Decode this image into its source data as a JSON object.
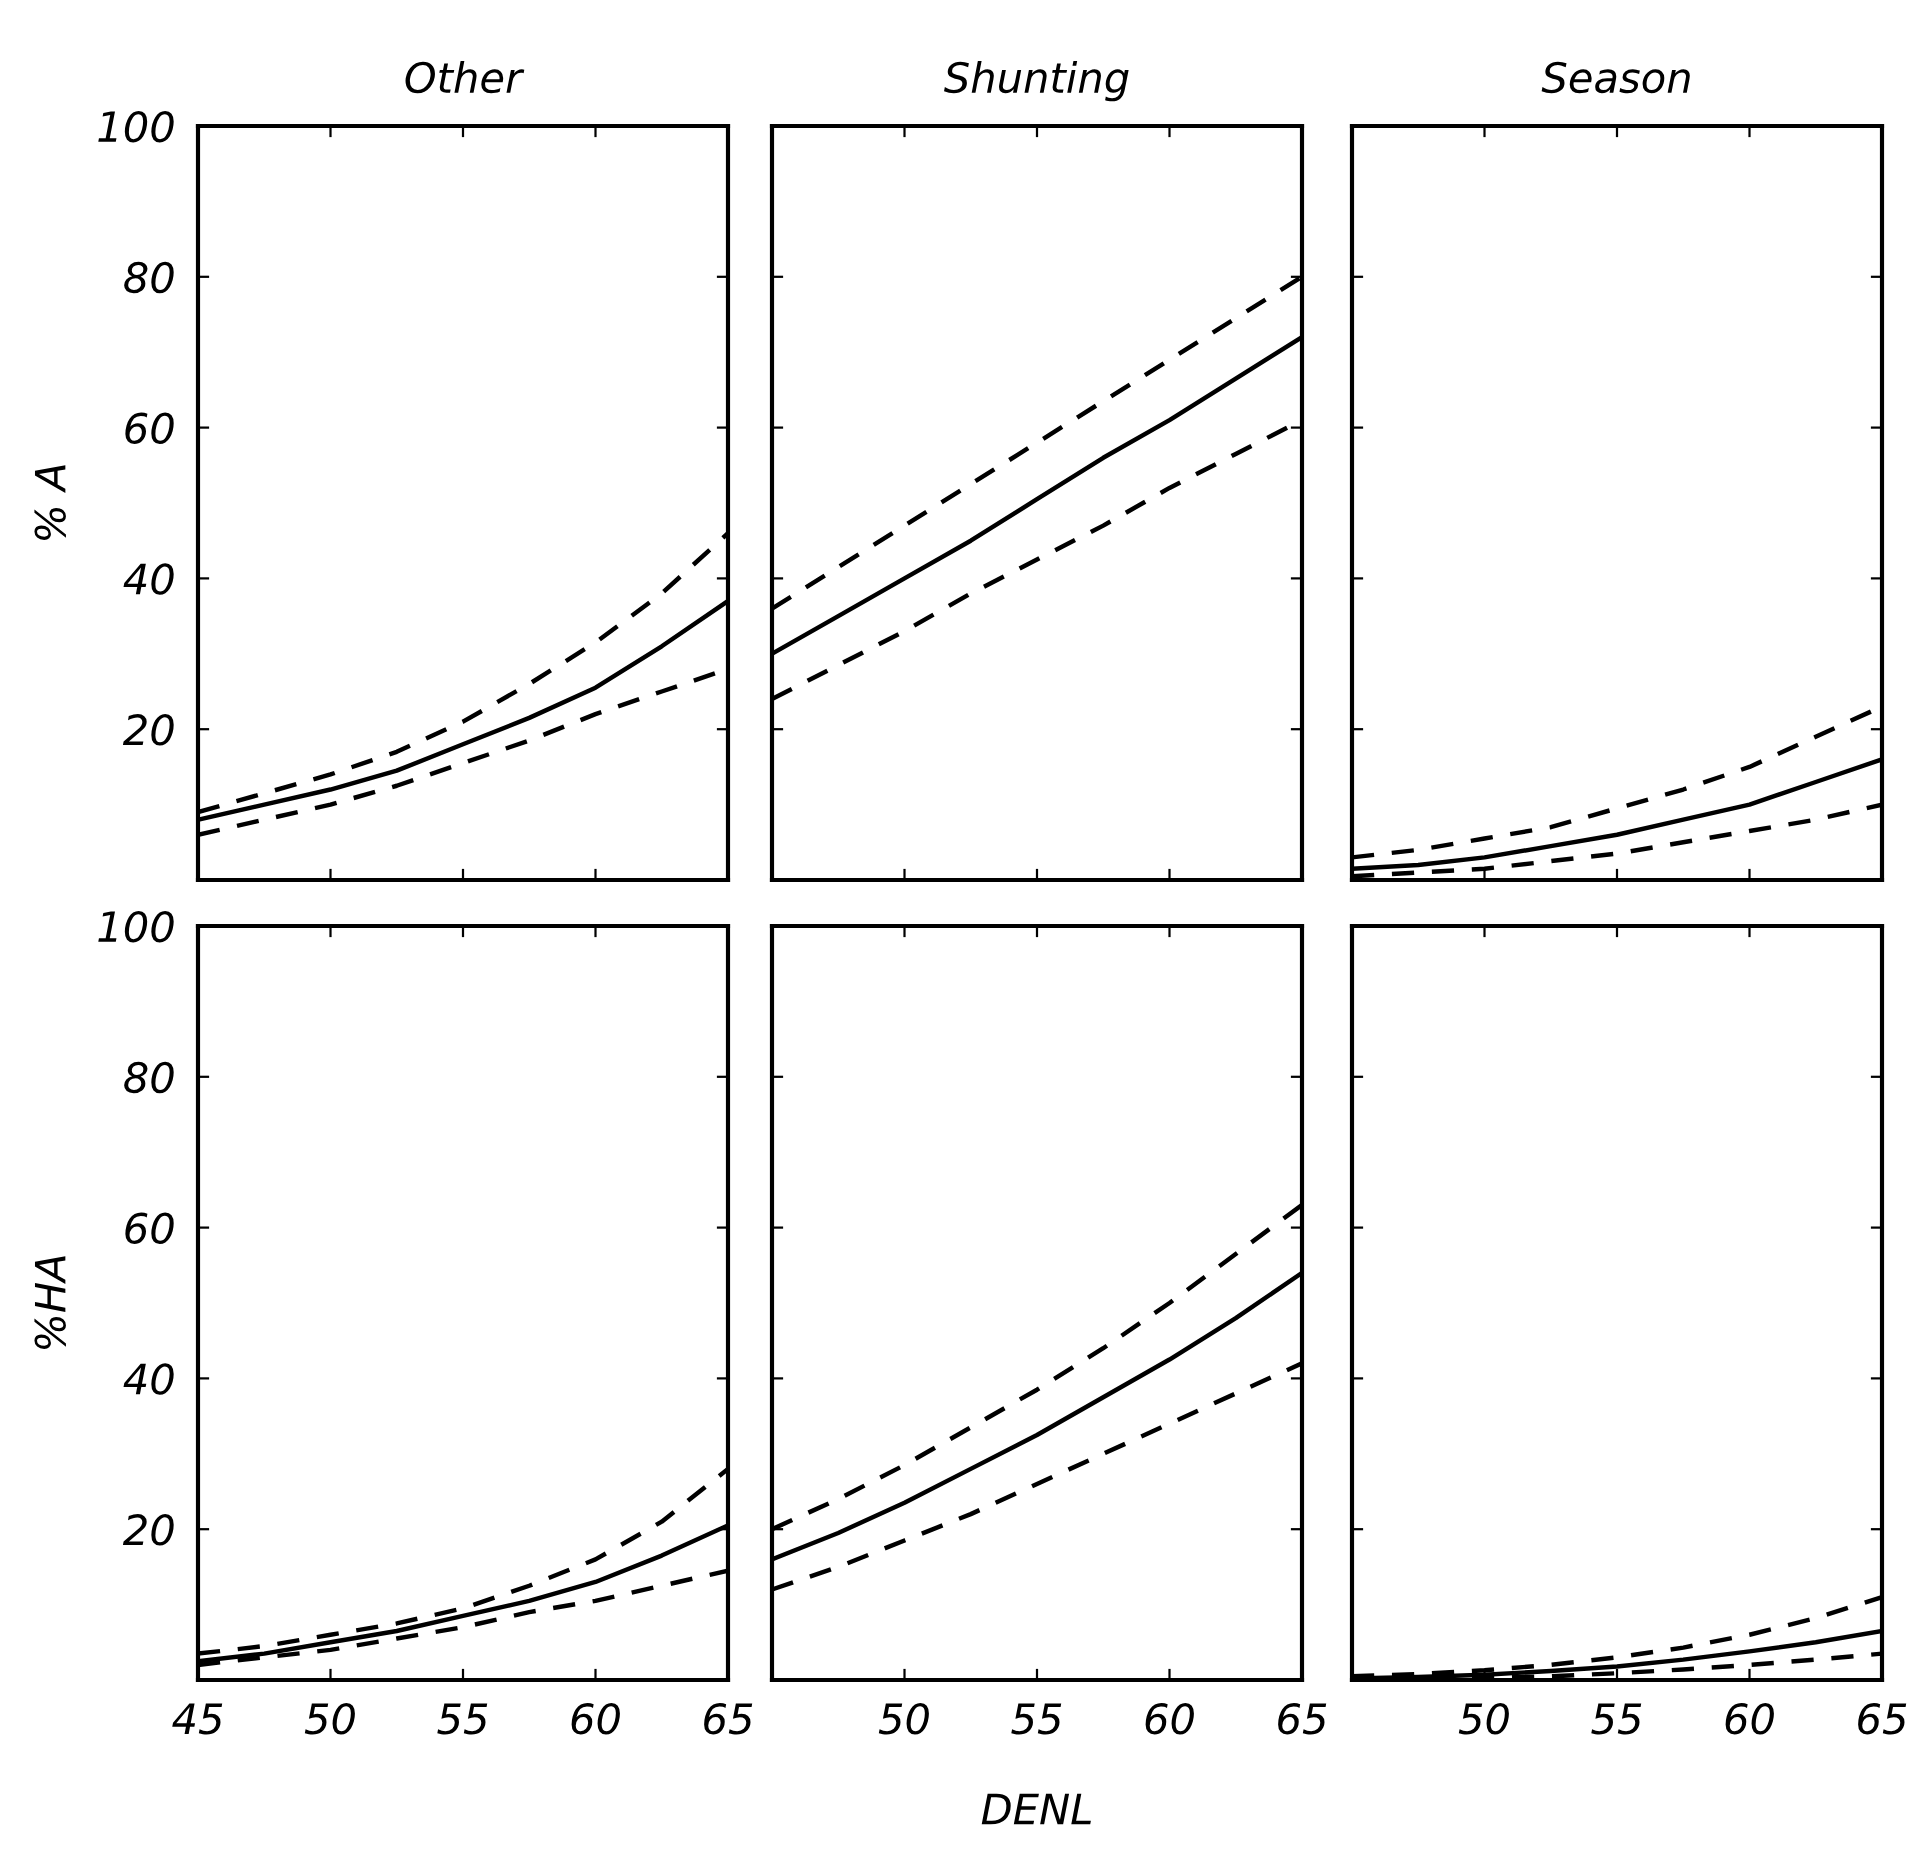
{
  "chart_data": [
    {
      "type": "line",
      "title": "Other",
      "ylabel": "% A",
      "x": [
        45,
        47.5,
        50,
        52.5,
        55,
        57.5,
        60,
        62.5,
        65
      ],
      "xlim": [
        45,
        65
      ],
      "xticks": [
        45,
        50,
        55,
        60,
        65
      ],
      "ylim": [
        0,
        100
      ],
      "yticks": [
        20,
        40,
        60,
        80,
        100
      ],
      "tick_labels": "y",
      "grid": false,
      "series": [
        {
          "color": "#000000",
          "line_style": "solid",
          "values": [
            8,
            10,
            12,
            14.5,
            18,
            21.5,
            25.5,
            31,
            37
          ]
        },
        {
          "color": "#000000",
          "line_style": "dashed",
          "values": [
            9,
            11.5,
            14,
            17,
            21,
            26,
            31.5,
            38,
            46
          ]
        },
        {
          "color": "#000000",
          "line_style": "dashed",
          "values": [
            6,
            8,
            10,
            12.5,
            15.5,
            18.5,
            22,
            25,
            28
          ]
        }
      ]
    },
    {
      "type": "line",
      "title": "Shunting",
      "x": [
        45,
        47.5,
        50,
        52.5,
        55,
        57.5,
        60,
        62.5,
        65
      ],
      "xlim": [
        45,
        65
      ],
      "xticks": [
        45,
        50,
        55,
        60,
        65
      ],
      "ylim": [
        0,
        100
      ],
      "yticks": [
        20,
        40,
        60,
        80,
        100
      ],
      "tick_labels": false,
      "grid": false,
      "series": [
        {
          "color": "#000000",
          "line_style": "solid",
          "values": [
            30,
            35,
            40,
            45,
            50.5,
            56,
            61,
            66.5,
            72
          ]
        },
        {
          "color": "#000000",
          "line_style": "dashed",
          "values": [
            36,
            41.5,
            47,
            52.5,
            58,
            63.5,
            69,
            74.5,
            80
          ]
        },
        {
          "color": "#000000",
          "line_style": "dashed",
          "values": [
            24,
            28.5,
            33,
            38,
            42.5,
            47,
            52,
            56.5,
            61
          ]
        }
      ]
    },
    {
      "type": "line",
      "title": "Season",
      "x": [
        45,
        47.5,
        50,
        52.5,
        55,
        57.5,
        60,
        62.5,
        65
      ],
      "xlim": [
        45,
        65
      ],
      "xticks": [
        45,
        50,
        55,
        60,
        65
      ],
      "ylim": [
        0,
        100
      ],
      "yticks": [
        20,
        40,
        60,
        80,
        100
      ],
      "tick_labels": false,
      "grid": false,
      "series": [
        {
          "color": "#000000",
          "line_style": "solid",
          "values": [
            1.5,
            2,
            3,
            4.5,
            6,
            8,
            10,
            13,
            16
          ]
        },
        {
          "color": "#000000",
          "line_style": "dashed",
          "values": [
            3,
            4,
            5.5,
            7,
            9.5,
            12,
            15,
            19,
            23
          ]
        },
        {
          "color": "#000000",
          "line_style": "dashed",
          "values": [
            0.5,
            1,
            1.5,
            2.5,
            3.5,
            5,
            6.5,
            8,
            10
          ]
        }
      ]
    },
    {
      "type": "line",
      "ylabel": "%HA",
      "x": [
        45,
        47.5,
        50,
        52.5,
        55,
        57.5,
        60,
        62.5,
        65
      ],
      "xlim": [
        45,
        65
      ],
      "xticks": [
        45,
        50,
        55,
        60,
        65
      ],
      "ylim": [
        0,
        100
      ],
      "yticks": [
        20,
        40,
        60,
        80,
        100
      ],
      "grid": false,
      "series": [
        {
          "color": "#000000",
          "line_style": "solid",
          "values": [
            2.5,
            3.5,
            5,
            6.5,
            8.5,
            10.5,
            13,
            16.5,
            20.5
          ]
        },
        {
          "color": "#000000",
          "line_style": "dashed",
          "values": [
            3.5,
            4.5,
            6,
            7.5,
            9.5,
            12.5,
            16,
            21,
            28
          ]
        },
        {
          "color": "#000000",
          "line_style": "dashed",
          "values": [
            2,
            3,
            4,
            5.5,
            7,
            9,
            10.5,
            12.5,
            14.5
          ]
        }
      ]
    },
    {
      "type": "line",
      "xlabel": "DENL",
      "x": [
        45,
        47.5,
        50,
        52.5,
        55,
        57.5,
        60,
        62.5,
        65
      ],
      "xlim": [
        45,
        65
      ],
      "xticks": [
        {
          "value": 45,
          "label": null
        },
        50,
        55,
        60,
        65
      ],
      "ylim": [
        0,
        100
      ],
      "yticks": [
        20,
        40,
        60,
        80,
        100
      ],
      "tick_labels": "x",
      "grid": false,
      "series": [
        {
          "color": "#000000",
          "line_style": "solid",
          "values": [
            16,
            19.5,
            23.5,
            28,
            32.5,
            37.5,
            42.5,
            48,
            54
          ]
        },
        {
          "color": "#000000",
          "line_style": "dashed",
          "values": [
            20,
            24,
            28.5,
            33.5,
            38.5,
            44,
            50,
            56.5,
            63
          ]
        },
        {
          "color": "#000000",
          "line_style": "dashed",
          "values": [
            12,
            15,
            18.5,
            22,
            26,
            30,
            34,
            38,
            42
          ]
        }
      ]
    },
    {
      "type": "line",
      "x": [
        45,
        47.5,
        50,
        52.5,
        55,
        57.5,
        60,
        62.5,
        65
      ],
      "xlim": [
        45,
        65
      ],
      "xticks": [
        {
          "value": 45,
          "label": null
        },
        50,
        55,
        60,
        65
      ],
      "ylim": [
        0,
        100
      ],
      "yticks": [
        20,
        40,
        60,
        80,
        100
      ],
      "tick_labels": "x",
      "grid": false,
      "series": [
        {
          "color": "#000000",
          "line_style": "solid",
          "values": [
            0.2,
            0.4,
            0.7,
            1.2,
            1.8,
            2.7,
            3.8,
            5,
            6.5
          ]
        },
        {
          "color": "#000000",
          "line_style": "dashed",
          "values": [
            0.5,
            0.8,
            1.3,
            2,
            3,
            4.3,
            6,
            8.2,
            11
          ]
        },
        {
          "color": "#000000",
          "line_style": "dashed",
          "values": [
            0,
            0.1,
            0.3,
            0.5,
            0.9,
            1.4,
            2,
            2.7,
            3.5
          ]
        }
      ]
    }
  ]
}
